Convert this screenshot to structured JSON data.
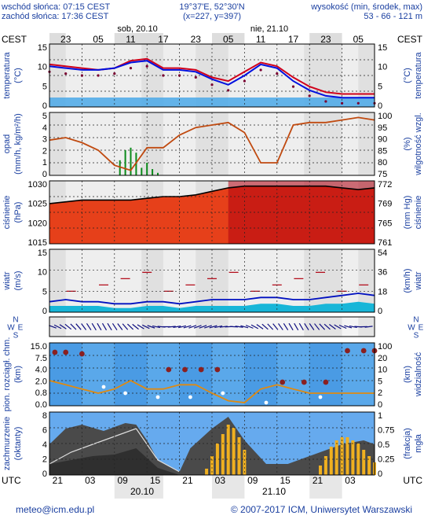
{
  "header": {
    "sunrise": "wschód słońca: 07:15 CEST",
    "sunset": "zachód słońca: 17:36 CEST",
    "coords": "19°37'E, 52°30'N",
    "grid": "(x=227, y=397)",
    "elevation_title": "wysokość (min, środek, max)",
    "elevation_values": "53 - 66 - 121 m"
  },
  "top_axis": {
    "tz": "CEST",
    "day1": "sob, 20.10",
    "day2": "nie, 21.10",
    "hours": [
      "23",
      "05",
      "11",
      "17",
      "23",
      "05",
      "11",
      "17",
      "23",
      "05"
    ]
  },
  "bottom_axis": {
    "tz": "UTC",
    "hours": [
      "21",
      "03",
      "09",
      "15",
      "21",
      "03",
      "09",
      "15",
      "21",
      "03"
    ],
    "date1": "20.10",
    "date2": "21.10"
  },
  "panels": {
    "temperature": {
      "left_label": "temperatura\n(°C)",
      "right_label": "(°C)\ntemperatura",
      "ticks": [
        "15",
        "10",
        "5",
        "0"
      ]
    },
    "precip": {
      "left_label": "opad\n(mm/h, kg/m²/h)",
      "right_label": "(%)\nwilgotność wzgl.",
      "left_ticks": [
        "5",
        "4",
        "3",
        "2",
        "1",
        "0"
      ],
      "right_ticks": [
        "100",
        "95",
        "90",
        "85",
        "80",
        "75"
      ]
    },
    "pressure": {
      "left_label": "ciśnienie\n(hPa)",
      "right_label": "(mm Hg)\nciśnienie",
      "left_ticks": [
        "1030",
        "1025",
        "1020",
        "1015"
      ],
      "right_ticks": [
        "772",
        "769",
        "765",
        "761"
      ]
    },
    "wind": {
      "left_label": "wiatr\n(m/s)",
      "right_label": "(km/h)\nwiatr",
      "left_ticks": [
        "15",
        "10",
        "5",
        "0"
      ],
      "right_ticks": [
        "54",
        "36",
        "18",
        "0"
      ]
    },
    "direction": {
      "compass": [
        "N",
        "W",
        "E",
        "S"
      ]
    },
    "visibility": {
      "left_label": "pion. rozciągł. chm.\n(km)",
      "right_label": "(km)\nwidzialność",
      "left_ticks": [
        "15.0",
        "7.5",
        "4.0",
        "2.0",
        "0.8",
        "0.0"
      ],
      "right_ticks": [
        "100",
        "20",
        "10",
        "5",
        "2",
        "0"
      ]
    },
    "clouds": {
      "left_label": "zachmurzenie\n(oktanty)",
      "right_label": "(frakcja)\nmgła",
      "left_ticks": [
        "8",
        "6",
        "4",
        "2",
        "0"
      ],
      "right_ticks": [
        "1",
        "0.75",
        "0.5",
        "0.25",
        "0"
      ]
    }
  },
  "footer": {
    "email": "meteo@icm.edu.pl",
    "copyright": "© 2007-2017 ICM, Uniwersytet Warszawski"
  },
  "chart_data": [
    {
      "type": "line",
      "ylim": [
        -2,
        15
      ],
      "x_hours": [
        0,
        3,
        6,
        9,
        12,
        15,
        18,
        21,
        24,
        27,
        30,
        33,
        36,
        39,
        42,
        45,
        48,
        51,
        54,
        57,
        60
      ],
      "series": [
        {
          "values": [
            9.5,
            9.0,
            8.5,
            8.0,
            8.5,
            10.5,
            11.0,
            8.5,
            8.5,
            8.0,
            6.0,
            5.0,
            7.5,
            10.0,
            9.0,
            6.0,
            3.5,
            2.0,
            1.5,
            1.5,
            1.5
          ]
        },
        {
          "values": [
            9.0,
            8.5,
            8.0,
            8.0,
            8.5,
            10.0,
            10.5,
            8.0,
            8.0,
            7.5,
            5.5,
            4.0,
            6.5,
            9.5,
            8.5,
            5.0,
            2.5,
            1.0,
            0.5,
            0.5,
            0.5
          ]
        }
      ]
    },
    {
      "type": "line",
      "x_hours": [
        0,
        3,
        6,
        9,
        12,
        15,
        18,
        21,
        24,
        27,
        30,
        33,
        36,
        39,
        42,
        45,
        48,
        51,
        54,
        57,
        60
      ],
      "ylim": [
        75,
        100
      ],
      "series": [
        {
          "values": [
            89,
            90,
            88,
            85,
            79,
            77,
            86,
            86,
            91,
            94,
            95,
            96,
            92,
            80,
            80,
            95,
            96,
            96,
            97,
            98,
            97
          ]
        }
      ],
      "precip_bars": {
        "x_hours": [
          13,
          14,
          15,
          16,
          17,
          18,
          19,
          20
        ],
        "values": [
          1.2,
          2.0,
          2.2,
          1.8,
          0.6,
          1.0,
          0.5,
          0.2
        ]
      }
    },
    {
      "type": "area",
      "x_hours": [
        0,
        3,
        6,
        9,
        12,
        15,
        18,
        21,
        24,
        27,
        30,
        33,
        36,
        39,
        42,
        45,
        48,
        51,
        54,
        57,
        60
      ],
      "ylim": [
        1012,
        1030
      ],
      "values": [
        1023.5,
        1024,
        1024.5,
        1024.5,
        1024.5,
        1024.5,
        1025,
        1025.5,
        1025.5,
        1026,
        1027,
        1028,
        1028.5,
        1028.5,
        1028.5,
        1028.5,
        1028.5,
        1028.5,
        1028,
        1027.5,
        1028
      ]
    },
    {
      "type": "line",
      "x_hours": [
        0,
        3,
        6,
        9,
        12,
        15,
        18,
        21,
        24,
        27,
        30,
        33,
        36,
        39,
        42,
        45,
        48,
        51,
        54,
        57,
        60
      ],
      "ylim": [
        0,
        15
      ],
      "series": [
        {
          "values": [
            2.5,
            3.0,
            2.5,
            2.5,
            2.0,
            2.0,
            2.5,
            2.5,
            2.0,
            2.5,
            3.0,
            3.0,
            3.0,
            3.5,
            3.5,
            3.0,
            3.0,
            3.5,
            4.0,
            4.5,
            4.0
          ]
        },
        {
          "values": [
            1.5,
            1.5,
            1.5,
            1.5,
            1.0,
            1.0,
            1.5,
            1.5,
            1.0,
            1.5,
            1.5,
            1.5,
            1.5,
            2.0,
            2.0,
            1.5,
            1.5,
            2.0,
            2.0,
            2.5,
            2.0
          ]
        }
      ]
    },
    {
      "type": "line",
      "x_hours": [
        0,
        3,
        6,
        9,
        12,
        15,
        18,
        21,
        24,
        27,
        30,
        33,
        36,
        39,
        42,
        45,
        48,
        51,
        54,
        57,
        60
      ],
      "ylim": [
        0,
        100
      ],
      "series": [
        {
          "values": [
            5,
            4,
            3,
            2,
            3,
            5,
            3,
            3,
            4,
            4,
            2,
            0.8,
            0.5,
            3,
            4,
            3,
            2,
            2,
            2,
            2,
            2
          ]
        }
      ]
    },
    {
      "type": "bar",
      "x_hours": [
        29,
        30,
        31,
        32,
        33,
        34,
        35,
        36,
        50,
        51,
        52,
        53,
        54,
        55,
        56,
        57,
        58,
        59,
        60
      ],
      "ylim": [
        0,
        1
      ],
      "values": [
        0.1,
        0.3,
        0.5,
        0.65,
        0.8,
        0.75,
        0.6,
        0.4,
        0.15,
        0.3,
        0.45,
        0.55,
        0.6,
        0.6,
        0.55,
        0.5,
        0.4,
        0.3,
        0.2
      ]
    }
  ]
}
